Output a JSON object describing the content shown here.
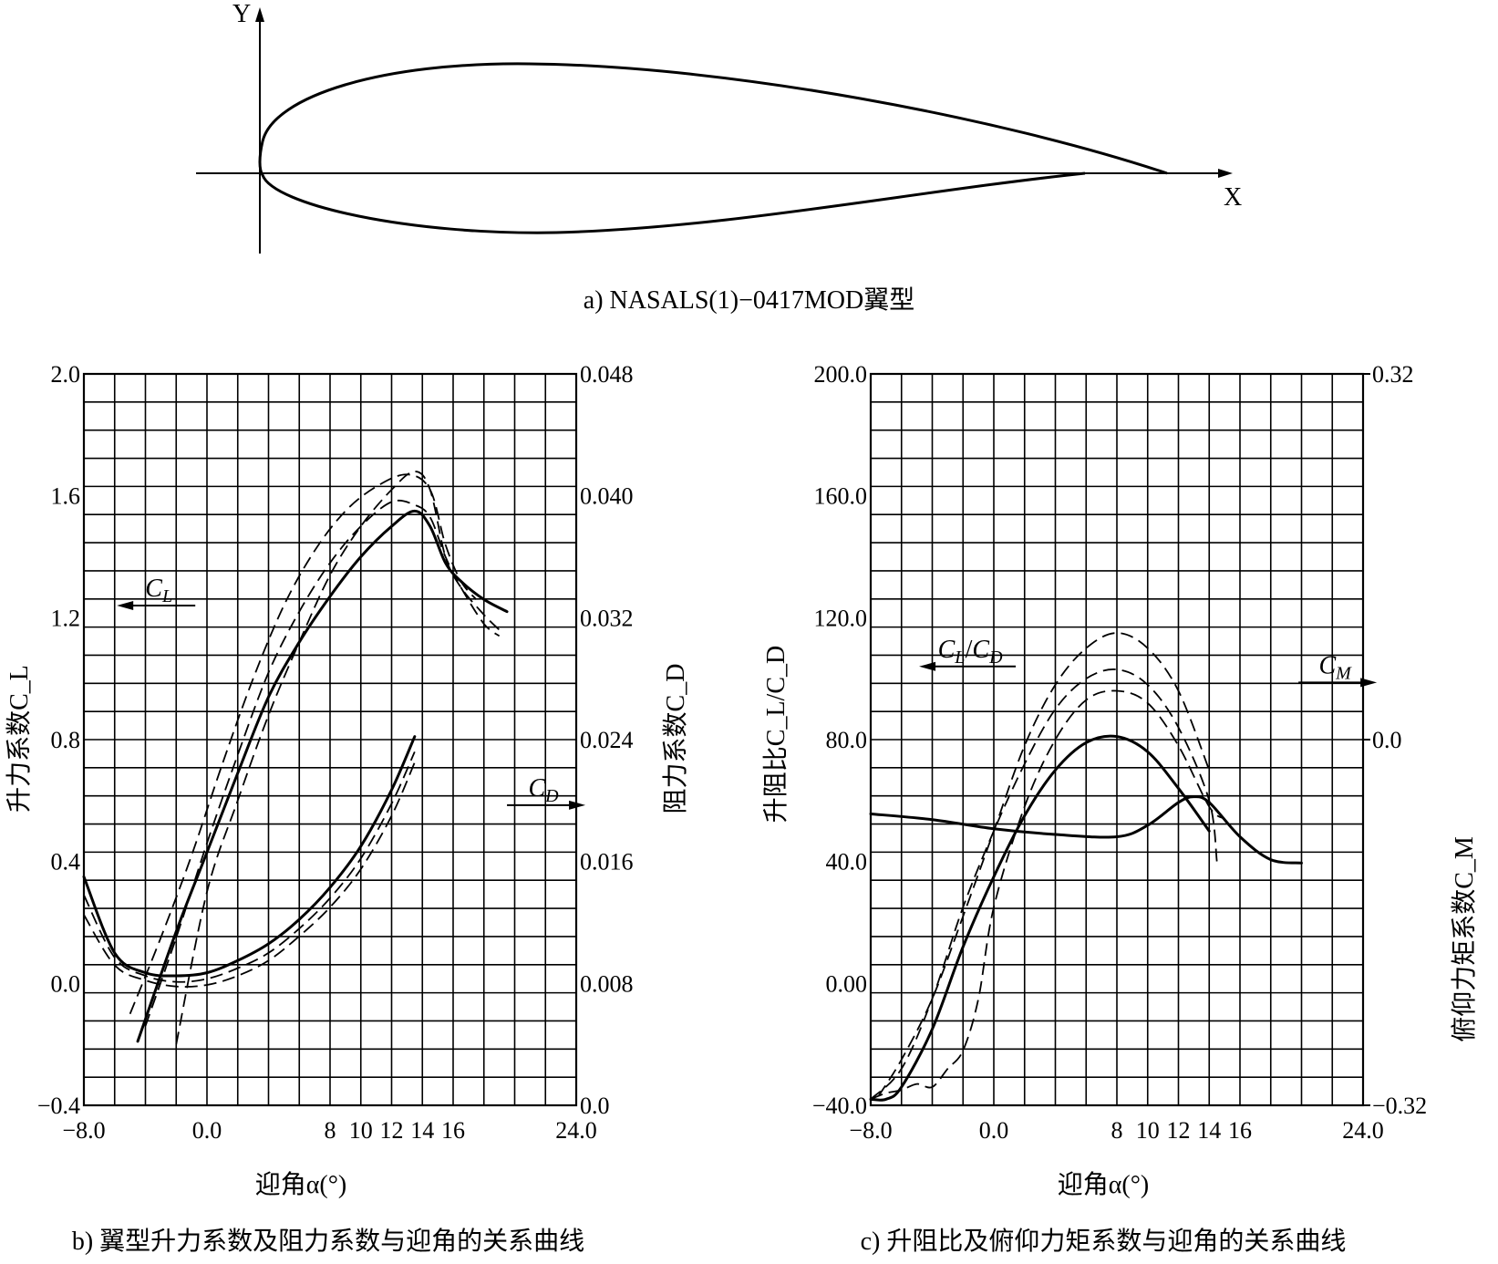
{
  "panel_a": {
    "y_axis": "Y",
    "x_axis": "X",
    "caption": "a) NASALS(1)−0417MOD翼型"
  },
  "chart_data": [
    {
      "id": "b",
      "type": "line",
      "caption": "b) 翼型升力系数及阻力系数与迎角的关系曲线",
      "xlabel": "迎角α(°)",
      "ylabel_left": "升力系数C_L",
      "ylabel_right": "阻力系数C_D",
      "xlim": [
        -8,
        24
      ],
      "ylim_left": [
        -0.4,
        2.0
      ],
      "ylim_right": [
        0.0,
        0.048
      ],
      "x_ticks": [
        "−8.0",
        "0.0",
        "8",
        "10",
        "12",
        "14",
        "16",
        "24.0"
      ],
      "y_ticks_left": [
        "2.0",
        "1.6",
        "1.2",
        "0.8",
        "0.4",
        "0.0",
        "−0.4"
      ],
      "y_ticks_right": [
        "0.048",
        "0.040",
        "0.032",
        "0.024",
        "0.016",
        "0.008",
        "0.0"
      ],
      "annotations": [
        {
          "text": "C_L",
          "arrow": "left",
          "a": 5.0,
          "v": 1.27
        },
        {
          "text": "C_D",
          "arrow": "right",
          "a": 25.5,
          "v": 0.32
        }
      ],
      "grid": true,
      "series": [
        {
          "name": "C_L",
          "axis": "left",
          "style": "solid",
          "x": [
            -4.5,
            -2,
            0,
            2,
            4,
            6,
            8,
            10,
            12,
            13.5,
            14.5,
            15.5,
            16.5,
            18,
            19.5
          ],
          "y": [
            -0.19,
            0.17,
            0.43,
            0.69,
            0.94,
            1.12,
            1.27,
            1.4,
            1.5,
            1.55,
            1.5,
            1.38,
            1.32,
            1.26,
            1.22
          ]
        },
        {
          "axis": "left",
          "style": "dashed",
          "x": [
            -2,
            0,
            2,
            4,
            6,
            8,
            10,
            12,
            13.5,
            14.5,
            15.5,
            16.5,
            18,
            19
          ],
          "y": [
            -0.2,
            0.3,
            0.6,
            0.88,
            1.12,
            1.34,
            1.5,
            1.62,
            1.68,
            1.62,
            1.4,
            1.3,
            1.21,
            1.16
          ]
        },
        {
          "axis": "left",
          "style": "dashed",
          "x": [
            -4,
            -2,
            0,
            2,
            4,
            6,
            8,
            10,
            12,
            13.5,
            14.5,
            15.5,
            16.5,
            18,
            19
          ],
          "y": [
            -0.14,
            0.15,
            0.46,
            0.75,
            1.02,
            1.22,
            1.38,
            1.5,
            1.58,
            1.57,
            1.53,
            1.4,
            1.3,
            1.18,
            1.14
          ]
        },
        {
          "axis": "left",
          "style": "dashed",
          "x": [
            -5,
            -3,
            -1,
            1,
            3,
            5,
            7,
            9,
            11,
            13,
            14.5,
            15.5,
            16.5,
            17.5
          ],
          "y": [
            -0.1,
            0.15,
            0.42,
            0.72,
            1.0,
            1.24,
            1.42,
            1.55,
            1.63,
            1.67,
            1.62,
            1.44,
            1.32,
            1.26
          ]
        },
        {
          "name": "C_D",
          "axis": "right",
          "style": "solid",
          "x": [
            -8,
            -6,
            -4,
            -2,
            0,
            2,
            4,
            6,
            8,
            10,
            12,
            13.5
          ],
          "y": [
            0.015,
            0.01,
            0.0087,
            0.0085,
            0.0087,
            0.0095,
            0.0106,
            0.0122,
            0.0143,
            0.017,
            0.0207,
            0.0242
          ]
        },
        {
          "axis": "right",
          "style": "dashed",
          "x": [
            -8,
            -6,
            -4,
            -2,
            0,
            2,
            4,
            6,
            8,
            10,
            12,
            13.5
          ],
          "y": [
            0.0125,
            0.0092,
            0.0082,
            0.0078,
            0.0079,
            0.0085,
            0.0095,
            0.0111,
            0.013,
            0.0155,
            0.019,
            0.0225
          ]
        },
        {
          "axis": "right",
          "style": "dashed",
          "x": [
            -8,
            -6,
            -4,
            -2,
            0,
            2,
            4,
            6,
            8,
            10,
            12,
            13.5
          ],
          "y": [
            0.0138,
            0.0097,
            0.0085,
            0.0081,
            0.0083,
            0.009,
            0.01,
            0.0116,
            0.0136,
            0.0162,
            0.0198,
            0.0232
          ]
        }
      ]
    },
    {
      "id": "c",
      "type": "line",
      "caption": "c) 升阻比及俯仰力矩系数与迎角的关系曲线",
      "xlabel": "迎角α(°)",
      "ylabel_left": "升阻比C_L/C_D",
      "ylabel_right": "俯仰力矩系数C_M",
      "xlim": [
        -8,
        24
      ],
      "ylim_left": [
        -40,
        200
      ],
      "ylim_right": [
        -0.32,
        0.32
      ],
      "x_ticks": [
        "−8.0",
        "0.0",
        "8",
        "10",
        "12",
        "14",
        "16",
        "24.0"
      ],
      "y_ticks_left": [
        "200.0",
        "160.0",
        "120.0",
        "80.0",
        "40.0",
        "0.00",
        "−40.0"
      ],
      "y_ticks_right": [
        "0.32",
        "0.0",
        "−0.32"
      ],
      "annotations": [
        {
          "text": "C_L/C_D",
          "arrow": "left",
          "a": -4.5,
          "v": 104
        },
        {
          "text": "C_M",
          "arrow": "right",
          "a": 19.8,
          "v": 0.08
        }
      ],
      "grid": true,
      "series": [
        {
          "name": "C_L/C_D",
          "axis": "left",
          "style": "solid",
          "x": [
            -8,
            -7,
            -6,
            -4,
            -2,
            0,
            2,
            4,
            6,
            8,
            10,
            12,
            14
          ],
          "y": [
            -38,
            -38,
            -34,
            -15,
            12,
            35,
            55,
            70,
            79,
            81,
            76,
            64,
            50
          ]
        },
        {
          "axis": "left",
          "style": "dashed",
          "x": [
            -8,
            -7,
            -6,
            -5,
            -4,
            -3,
            -2,
            -1,
            0,
            2,
            4,
            6,
            8,
            10,
            12,
            14,
            15
          ],
          "y": [
            -38,
            -36,
            -35,
            -33,
            -34,
            -28,
            -22,
            -5,
            25,
            58,
            80,
            93,
            96,
            92,
            78,
            58,
            54
          ]
        },
        {
          "axis": "left",
          "style": "dashed",
          "x": [
            -8,
            -6,
            -4,
            -2,
            0,
            2,
            4,
            6,
            8,
            10,
            12,
            14,
            14.5
          ],
          "y": [
            -38,
            -28,
            -5,
            25,
            50,
            72,
            90,
            100,
            103,
            98,
            84,
            60,
            40
          ]
        },
        {
          "axis": "left",
          "style": "dashed",
          "x": [
            -7.5,
            -6,
            -4,
            -2,
            0,
            2,
            4,
            6,
            8,
            10,
            12,
            14
          ],
          "y": [
            -37,
            -25,
            -5,
            22,
            50,
            78,
            98,
            110,
            115,
            110,
            96,
            70
          ]
        },
        {
          "name": "C_M",
          "axis": "right",
          "style": "solid",
          "x": [
            -8,
            -4,
            0,
            4,
            8,
            10,
            12,
            13,
            14,
            16,
            18,
            20
          ],
          "y": [
            -0.065,
            -0.07,
            -0.078,
            -0.083,
            -0.085,
            -0.075,
            -0.055,
            -0.05,
            -0.055,
            -0.085,
            -0.105,
            -0.108
          ]
        }
      ]
    }
  ]
}
